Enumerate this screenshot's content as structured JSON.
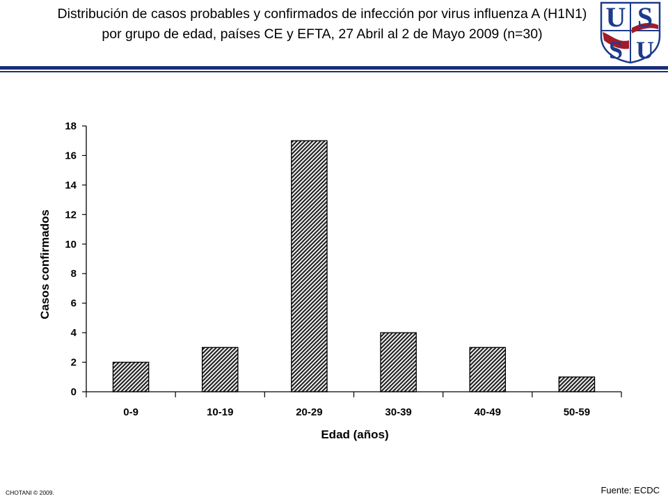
{
  "header": {
    "title": "Distribución de casos probables y confirmados de infección por virus influenza A (H1N1) por grupo de edad, países CE y EFTA, 27 Abril al 2 de Mayo 2009 (n=30)",
    "logo_letters": [
      "U",
      "S",
      "S",
      "U"
    ],
    "rule_color": "#1b2f7a"
  },
  "chart_data": {
    "type": "bar",
    "categories": [
      "0-9",
      "10-19",
      "20-29",
      "30-39",
      "40-49",
      "50-59"
    ],
    "values": [
      2,
      3,
      17,
      4,
      3,
      1
    ],
    "xlabel": "Edad (años)",
    "ylabel": "Casos confirmados",
    "ylim": [
      0,
      18
    ],
    "yticks": [
      0,
      2,
      4,
      6,
      8,
      10,
      12,
      14,
      16,
      18
    ],
    "bar_fill": "hatched",
    "grid": false
  },
  "footer": {
    "copyright": "CHOTANI © 2009.",
    "source": "Fuente: ECDC"
  }
}
